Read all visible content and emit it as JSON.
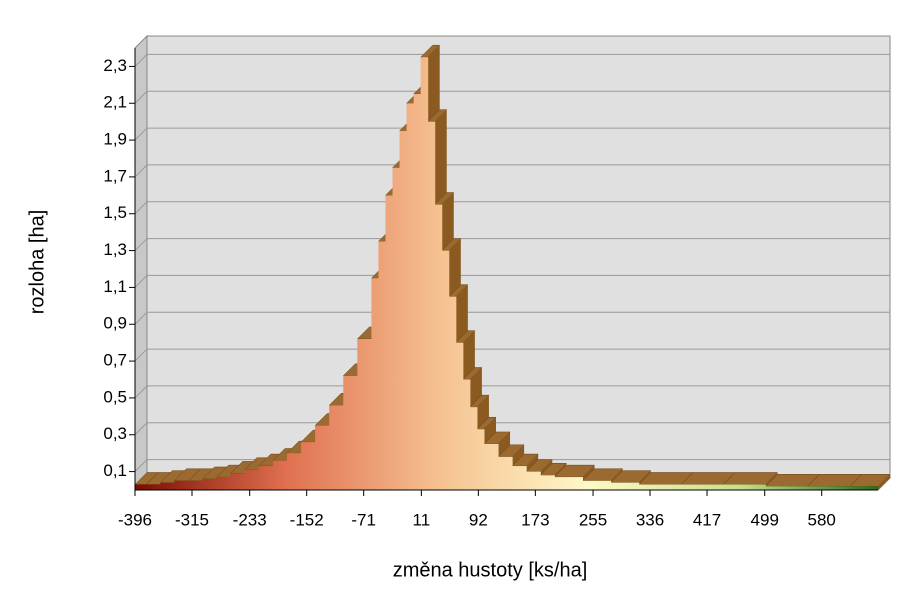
{
  "chart_data": {
    "type": "area3d",
    "x_label": "změna hustoty [ks/ha]",
    "y_label": "rozloha  [ha]",
    "x": [
      -396,
      -380,
      -360,
      -340,
      -320,
      -300,
      -280,
      -260,
      -240,
      -220,
      -200,
      -180,
      -160,
      -140,
      -120,
      -100,
      -80,
      -60,
      -50,
      -40,
      -30,
      -20,
      -10,
      0,
      10,
      20,
      30,
      40,
      50,
      60,
      70,
      80,
      90,
      100,
      120,
      140,
      160,
      180,
      200,
      240,
      280,
      320,
      380,
      440,
      500,
      560,
      620
    ],
    "values": [
      0.03,
      0.03,
      0.04,
      0.05,
      0.05,
      0.06,
      0.07,
      0.09,
      0.11,
      0.13,
      0.16,
      0.2,
      0.26,
      0.35,
      0.46,
      0.62,
      0.82,
      1.15,
      1.35,
      1.6,
      1.75,
      1.95,
      2.1,
      2.15,
      2.35,
      2.0,
      1.55,
      1.3,
      1.05,
      0.8,
      0.6,
      0.45,
      0.33,
      0.25,
      0.18,
      0.13,
      0.1,
      0.08,
      0.07,
      0.05,
      0.04,
      0.03,
      0.03,
      0.03,
      0.02,
      0.02,
      0.02
    ],
    "colors": [
      "#7a0c00",
      "#e07050",
      "#f5c090",
      "#fff8c8",
      "#c8e08c",
      "#1a6410"
    ],
    "xlim": [
      -396,
      660
    ],
    "ylim": [
      0,
      2.4
    ],
    "xticks": [
      -396,
      -315,
      -233,
      -152,
      -71,
      11,
      92,
      173,
      255,
      336,
      417,
      499,
      580
    ],
    "yticks": [
      {
        "value": 0.1,
        "label": "0,1"
      },
      {
        "value": 0.3,
        "label": "0,3"
      },
      {
        "value": 0.5,
        "label": "0,5"
      },
      {
        "value": 0.7,
        "label": "0,7"
      },
      {
        "value": 0.9,
        "label": "0,9"
      },
      {
        "value": 1.1,
        "label": "1,1"
      },
      {
        "value": 1.3,
        "label": "1,3"
      },
      {
        "value": 1.5,
        "label": "1,5"
      },
      {
        "value": 1.7,
        "label": "1,7"
      },
      {
        "value": 1.9,
        "label": "1,9"
      },
      {
        "value": 2.1,
        "label": "2,1"
      },
      {
        "value": 2.3,
        "label": "2,3"
      }
    ],
    "grid": true
  }
}
